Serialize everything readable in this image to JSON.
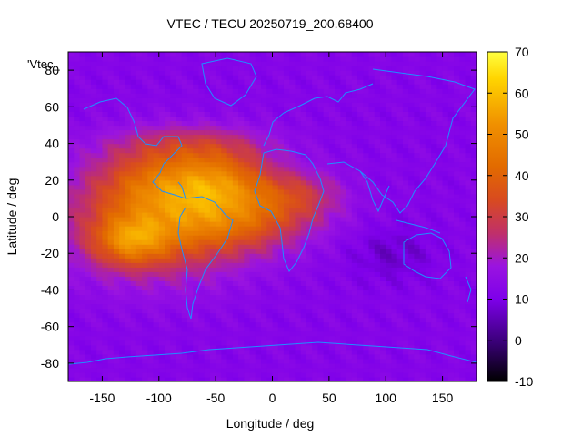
{
  "chart_data": {
    "type": "heatmap",
    "title": "VTEC / TECU 20250719_200.68400",
    "xlabel": "Longitude / deg",
    "ylabel": "Latitude / deg",
    "legend_label": "'Vtec_",
    "xlim": [
      -180,
      180
    ],
    "ylim": [
      -90,
      90
    ],
    "x_ticks": [
      -150,
      -100,
      -50,
      0,
      50,
      100,
      150
    ],
    "y_ticks": [
      -80,
      -60,
      -40,
      -20,
      0,
      20,
      40,
      60,
      80
    ],
    "colorbar": {
      "min": -10,
      "max": 70,
      "ticks": [
        -10,
        0,
        10,
        20,
        30,
        40,
        50,
        60,
        70
      ],
      "palette": [
        "#000000",
        "#3a0078",
        "#7e00ea",
        "#9a14e0",
        "#c0306a",
        "#d84a20",
        "#e26a00",
        "#f09000",
        "#ffd500",
        "#ffff40"
      ]
    },
    "grid": false,
    "field_description_points": {
      "background_tecu": 12,
      "peak_tecu": 62,
      "peak_lon_lat": [
        -125,
        -12
      ]
    }
  }
}
